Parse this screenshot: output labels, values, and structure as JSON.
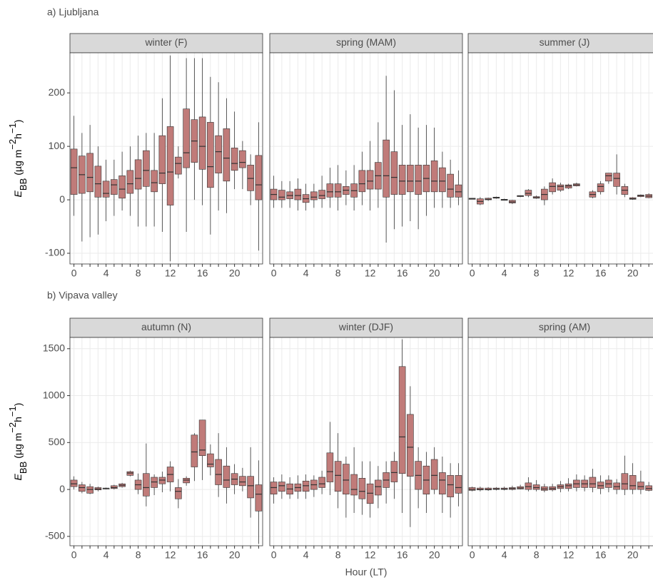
{
  "chart_data": [
    {
      "type": "box",
      "row_title": "a) Ljubljana",
      "ylabel": {
        "symbol": "E",
        "subscript": "BB",
        "unit": "(µg m",
        "exp1": "−2",
        "unit2": "h",
        "exp2": "−1",
        "close": ")"
      },
      "title": "winter (F)",
      "color": "#c07b79",
      "x": [
        0,
        1,
        2,
        3,
        4,
        5,
        6,
        7,
        8,
        9,
        10,
        11,
        12,
        13,
        14,
        15,
        16,
        17,
        18,
        19,
        20,
        21,
        22,
        23
      ],
      "xticks": [
        0,
        4,
        8,
        12,
        16,
        20
      ],
      "ylim": [
        -120,
        275
      ],
      "yticks": [
        -100,
        0,
        100,
        200
      ],
      "low": [
        -30,
        -78,
        -70,
        -65,
        -40,
        -30,
        -20,
        -30,
        -50,
        -50,
        -50,
        -60,
        -115,
        40,
        -60,
        0,
        -10,
        -65,
        -20,
        -25,
        20,
        20,
        -10,
        -95
      ],
      "q1": [
        10,
        12,
        15,
        5,
        5,
        10,
        3,
        12,
        20,
        25,
        15,
        30,
        -10,
        48,
        60,
        70,
        57,
        23,
        50,
        35,
        55,
        60,
        17,
        0
      ],
      "median": [
        60,
        47,
        42,
        30,
        12,
        28,
        20,
        30,
        40,
        55,
        32,
        50,
        52,
        68,
        88,
        110,
        100,
        62,
        90,
        78,
        68,
        70,
        40,
        28
      ],
      "q3": [
        95,
        82,
        87,
        63,
        35,
        38,
        45,
        55,
        75,
        92,
        55,
        120,
        137,
        80,
        170,
        150,
        155,
        145,
        120,
        133,
        97,
        92,
        65,
        83
      ],
      "high": [
        157,
        125,
        140,
        100,
        75,
        75,
        90,
        100,
        120,
        125,
        125,
        190,
        270,
        100,
        265,
        265,
        265,
        230,
        220,
        190,
        165,
        110,
        85,
        145
      ]
    },
    {
      "type": "box",
      "title": "spring (MAM)",
      "color": "#c07b79",
      "x": [
        0,
        1,
        2,
        3,
        4,
        5,
        6,
        7,
        8,
        9,
        10,
        11,
        12,
        13,
        14,
        15,
        16,
        17,
        18,
        19,
        20,
        21,
        22,
        23
      ],
      "xticks": [
        0,
        4,
        8,
        12,
        16,
        20
      ],
      "ylim": [
        -120,
        275
      ],
      "yticks": [
        -100,
        0,
        100,
        200
      ],
      "low": [
        -15,
        -15,
        -15,
        -20,
        -20,
        -15,
        -15,
        -15,
        -20,
        -10,
        -20,
        -10,
        -20,
        -15,
        -80,
        -55,
        -50,
        -40,
        -55,
        -30,
        -15,
        -15,
        -15,
        -10
      ],
      "q1": [
        0,
        0,
        2,
        0,
        -5,
        0,
        2,
        5,
        5,
        10,
        5,
        15,
        20,
        20,
        5,
        10,
        10,
        15,
        10,
        15,
        15,
        15,
        5,
        5
      ],
      "median": [
        10,
        5,
        8,
        8,
        2,
        5,
        8,
        15,
        15,
        18,
        17,
        30,
        35,
        45,
        45,
        42,
        35,
        35,
        35,
        40,
        35,
        35,
        20,
        15
      ],
      "q3": [
        20,
        18,
        15,
        20,
        10,
        15,
        18,
        30,
        30,
        25,
        30,
        55,
        55,
        70,
        112,
        90,
        65,
        65,
        65,
        65,
        73,
        60,
        48,
        28
      ],
      "high": [
        45,
        35,
        35,
        40,
        30,
        30,
        45,
        60,
        65,
        55,
        65,
        90,
        110,
        145,
        232,
        205,
        140,
        160,
        135,
        140,
        135,
        90,
        75,
        55
      ]
    },
    {
      "type": "box",
      "title": "summer (J)",
      "color": "#c07b79",
      "x": [
        0,
        1,
        2,
        3,
        4,
        5,
        6,
        7,
        8,
        9,
        10,
        11,
        12,
        13,
        14,
        15,
        16,
        17,
        18,
        19,
        20,
        21,
        22,
        23
      ],
      "xticks": [
        0,
        4,
        8,
        12,
        16,
        20
      ],
      "ylim": [
        -120,
        275
      ],
      "yticks": [
        -100,
        0,
        100,
        200
      ],
      "low": [
        1,
        -10,
        -2,
        2,
        -1,
        -8,
        5,
        5,
        2,
        -10,
        10,
        15,
        20,
        25,
        null,
        3,
        10,
        30,
        10,
        5,
        0,
        5,
        3,
        5
      ],
      "q1": [
        1,
        -8,
        0,
        3,
        -1,
        -6,
        6,
        8,
        3,
        0,
        15,
        18,
        22,
        26,
        null,
        5,
        15,
        35,
        25,
        10,
        1,
        6,
        4,
        6
      ],
      "median": [
        2,
        -3,
        1,
        4,
        0,
        -4,
        7,
        12,
        4,
        10,
        25,
        25,
        26,
        28,
        null,
        10,
        25,
        45,
        40,
        18,
        2,
        8,
        7,
        7
      ],
      "q3": [
        3,
        2,
        3,
        5,
        1,
        -1,
        8,
        18,
        6,
        20,
        32,
        28,
        28,
        30,
        null,
        15,
        30,
        50,
        50,
        25,
        4,
        9,
        10,
        8
      ],
      "high": [
        3,
        5,
        4,
        6,
        2,
        0,
        8,
        20,
        8,
        25,
        40,
        32,
        30,
        32,
        null,
        18,
        35,
        50,
        85,
        30,
        5,
        10,
        12,
        8
      ]
    },
    {
      "type": "box",
      "row_title": "b) Vipava valley",
      "ylabel": {
        "symbol": "E",
        "subscript": "BB",
        "unit": "(µg m",
        "exp1": "−2",
        "unit2": "h",
        "exp2": "−1",
        "close": ")"
      },
      "title": "autumn (N)",
      "color": "#c07b79",
      "x": [
        0,
        1,
        2,
        3,
        4,
        5,
        6,
        7,
        8,
        9,
        10,
        11,
        12,
        13,
        14,
        15,
        16,
        17,
        18,
        19,
        20,
        21,
        22,
        23
      ],
      "xticks": [
        0,
        4,
        8,
        12,
        16,
        20
      ],
      "ylim": [
        -600,
        1620
      ],
      "yticks": [
        -500,
        0,
        500,
        1000,
        1500
      ],
      "low": [
        0,
        -40,
        -50,
        -20,
        0,
        0,
        20,
        140,
        -50,
        -180,
        -60,
        -30,
        -20,
        -200,
        40,
        90,
        100,
        150,
        -80,
        -150,
        -50,
        -20,
        -300,
        -580
      ],
      "q1": [
        30,
        -20,
        -40,
        -5,
        5,
        10,
        30,
        150,
        0,
        -70,
        20,
        60,
        80,
        -100,
        70,
        240,
        360,
        240,
        50,
        20,
        50,
        40,
        -90,
        -230
      ],
      "median": [
        60,
        20,
        0,
        5,
        10,
        20,
        45,
        175,
        50,
        20,
        80,
        100,
        160,
        -20,
        100,
        400,
        420,
        270,
        160,
        100,
        110,
        80,
        40,
        -50
      ],
      "q3": [
        100,
        50,
        30,
        20,
        15,
        40,
        60,
        190,
        100,
        170,
        130,
        130,
        240,
        20,
        120,
        580,
        740,
        380,
        320,
        250,
        170,
        140,
        140,
        50
      ],
      "high": [
        140,
        80,
        60,
        30,
        20,
        50,
        70,
        200,
        170,
        490,
        160,
        190,
        300,
        110,
        140,
        600,
        740,
        480,
        600,
        450,
        270,
        230,
        450,
        310
      ]
    },
    {
      "type": "box",
      "title": "winter (DJF)",
      "xlabel": "Hour (LT)",
      "color": "#c07b79",
      "x": [
        0,
        1,
        2,
        3,
        4,
        5,
        6,
        7,
        8,
        9,
        10,
        11,
        12,
        13,
        14,
        15,
        16,
        17,
        18,
        19,
        20,
        21,
        22,
        23
      ],
      "xticks": [
        0,
        4,
        8,
        12,
        16,
        20
      ],
      "ylim": [
        -600,
        1620
      ],
      "yticks": [
        -500,
        0,
        500,
        1000,
        1500
      ],
      "low": [
        -150,
        -100,
        -100,
        -100,
        -100,
        -80,
        -50,
        -60,
        -200,
        -300,
        -250,
        -270,
        -300,
        -200,
        -150,
        -100,
        -250,
        -400,
        -200,
        -250,
        -50,
        -250,
        -300,
        -180
      ],
      "q1": [
        -50,
        -20,
        -50,
        -20,
        -20,
        0,
        20,
        80,
        -20,
        -50,
        -60,
        -100,
        -150,
        -60,
        20,
        80,
        170,
        140,
        0,
        -50,
        0,
        -50,
        -80,
        -40
      ],
      "median": [
        20,
        40,
        5,
        20,
        40,
        50,
        60,
        190,
        150,
        100,
        0,
        -20,
        -40,
        30,
        100,
        180,
        560,
        450,
        150,
        100,
        150,
        100,
        50,
        20
      ],
      "q3": [
        80,
        80,
        60,
        60,
        90,
        100,
        130,
        390,
        300,
        270,
        160,
        120,
        60,
        100,
        180,
        300,
        1310,
        800,
        300,
        250,
        320,
        180,
        150,
        150
      ],
      "high": [
        130,
        160,
        130,
        150,
        160,
        150,
        200,
        720,
        600,
        350,
        450,
        300,
        300,
        250,
        300,
        400,
        1600,
        1100,
        450,
        400,
        450,
        350,
        280,
        280
      ]
    },
    {
      "type": "box",
      "title": "spring (AM)",
      "color": "#c07b79",
      "x": [
        0,
        1,
        2,
        3,
        4,
        5,
        6,
        7,
        8,
        9,
        10,
        11,
        12,
        13,
        14,
        15,
        16,
        17,
        18,
        19,
        20,
        21,
        22,
        23
      ],
      "xticks": [
        0,
        4,
        8,
        12,
        16,
        20
      ],
      "ylim": [
        -600,
        1620
      ],
      "yticks": [
        -500,
        0,
        500,
        1000,
        1500
      ],
      "low": [
        -20,
        -20,
        -15,
        -10,
        -10,
        -10,
        0,
        -20,
        -20,
        -30,
        -20,
        -30,
        -20,
        -20,
        -20,
        -30,
        -50,
        -30,
        -50,
        -60,
        -50,
        -50,
        -20,
        -30
      ],
      "q1": [
        -10,
        -5,
        -5,
        0,
        0,
        0,
        5,
        0,
        0,
        -10,
        -5,
        10,
        10,
        20,
        20,
        20,
        10,
        20,
        0,
        0,
        0,
        0,
        -10,
        -10
      ],
      "median": [
        0,
        0,
        0,
        5,
        5,
        10,
        15,
        30,
        20,
        5,
        10,
        30,
        40,
        60,
        60,
        60,
        40,
        60,
        30,
        60,
        40,
        30,
        10,
        5
      ],
      "q3": [
        20,
        15,
        15,
        15,
        15,
        20,
        30,
        70,
        50,
        30,
        30,
        50,
        60,
        100,
        100,
        130,
        80,
        100,
        70,
        170,
        150,
        80,
        40,
        30
      ],
      "high": [
        30,
        30,
        25,
        25,
        30,
        40,
        50,
        130,
        100,
        60,
        60,
        90,
        120,
        160,
        150,
        220,
        150,
        150,
        110,
        360,
        280,
        200,
        80,
        60
      ]
    }
  ]
}
